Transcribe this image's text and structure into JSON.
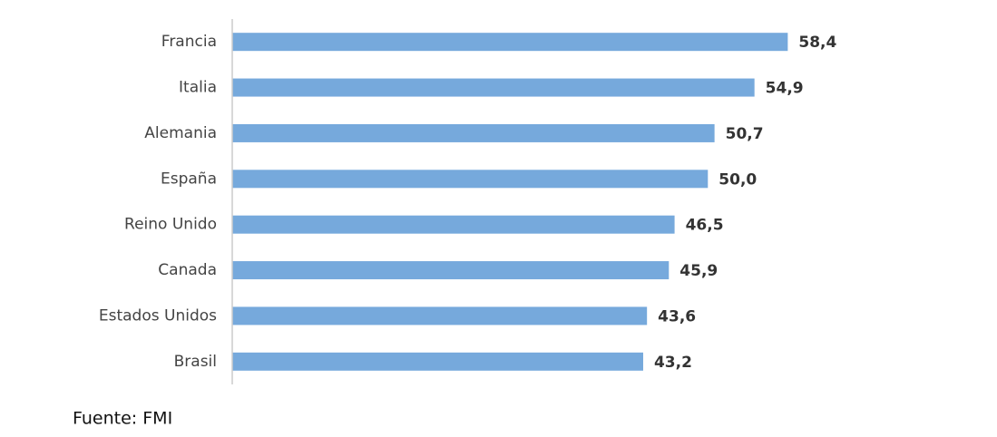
{
  "chart_data": {
    "type": "barh",
    "categories": [
      "Francia",
      "Italia",
      "Alemania",
      "España",
      "Reino Unido",
      "Canada",
      "Estados Unidos",
      "Brasil"
    ],
    "values": [
      58.4,
      54.9,
      50.7,
      50.0,
      46.5,
      45.9,
      43.6,
      43.2
    ],
    "value_labels": [
      "58,4",
      "54,9",
      "50,7",
      "50,0",
      "46,5",
      "45,9",
      "43,6",
      "43,2"
    ],
    "color": "#76a9dc",
    "xlim": [
      0,
      70
    ],
    "source": "Fuente: FMI"
  }
}
